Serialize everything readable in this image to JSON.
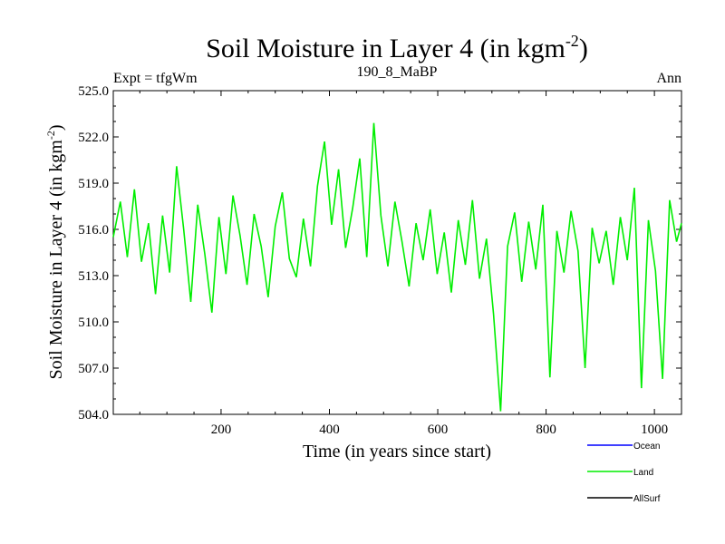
{
  "chart_data": {
    "type": "line",
    "title": "Soil Moisture in Layer 4 (in kgm",
    "title_superscript": "-2",
    "title_close": ")",
    "subtitle_left": "Expt = tfgWm",
    "subtitle_center": "190_8_MaBP",
    "subtitle_right": "Ann",
    "xlabel": "Time (in years since start)",
    "ylabel": "Soil Moisture in Layer 4 (in kgm",
    "ylabel_superscript": "-2",
    "ylabel_close": ")",
    "xlim": [
      1,
      1050
    ],
    "ylim": [
      504.0,
      525.0
    ],
    "xticks": [
      200,
      400,
      600,
      800,
      1000
    ],
    "yticks": [
      504.0,
      507.0,
      510.0,
      513.0,
      516.0,
      519.0,
      522.0,
      525.0
    ],
    "ytick_labels": [
      "504.0",
      "507.0",
      "510.0",
      "513.0",
      "516.0",
      "519.0",
      "522.0",
      "525.0"
    ],
    "xtick_labels": [
      "200",
      "400",
      "600",
      "800",
      "1000"
    ],
    "legend_placement": "bottom-right, below plot",
    "series": [
      {
        "name": "Ocean",
        "color": "#0000ff",
        "x": [],
        "y": []
      },
      {
        "name": "Land",
        "color": "#00ee00",
        "x": [
          1,
          14,
          27,
          40,
          53,
          66,
          79,
          92,
          105,
          118,
          131,
          144,
          157,
          170,
          183,
          196,
          209,
          222,
          235,
          248,
          261,
          274,
          287,
          300,
          313,
          326,
          339,
          352,
          365,
          378,
          391,
          404,
          417,
          430,
          443,
          456,
          469,
          482,
          495,
          508,
          521,
          534,
          547,
          560,
          573,
          586,
          599,
          612,
          625,
          638,
          651,
          664,
          677,
          690,
          703,
          716,
          729,
          742,
          755,
          768,
          781,
          794,
          807,
          820,
          833,
          846,
          859,
          872,
          885,
          898,
          911,
          924,
          937,
          950,
          963,
          976,
          989,
          1002,
          1015,
          1028,
          1041,
          1050
        ],
        "y": [
          515.5,
          517.8,
          514.2,
          518.6,
          513.9,
          516.4,
          511.8,
          516.9,
          513.2,
          520.1,
          516.0,
          511.3,
          517.6,
          514.4,
          510.6,
          516.8,
          513.1,
          518.2,
          515.6,
          512.4,
          517.0,
          514.9,
          511.6,
          516.2,
          518.4,
          514.1,
          512.9,
          516.7,
          513.6,
          518.8,
          521.7,
          516.3,
          519.9,
          514.8,
          517.4,
          520.6,
          514.2,
          522.9,
          516.9,
          513.6,
          517.8,
          515.2,
          512.3,
          516.4,
          514.0,
          517.3,
          513.1,
          515.8,
          511.9,
          516.6,
          513.7,
          517.9,
          512.8,
          515.4,
          510.5,
          504.2,
          514.9,
          517.1,
          512.6,
          516.5,
          513.4,
          517.6,
          506.4,
          515.9,
          513.2,
          517.2,
          514.6,
          507.0,
          516.1,
          513.8,
          515.9,
          512.4,
          516.8,
          514.0,
          518.7,
          505.7,
          516.6,
          513.3,
          506.3,
          517.9,
          515.2,
          516.4
        ]
      },
      {
        "name": "AllSurf",
        "color": "#000000",
        "x": [],
        "y": []
      }
    ]
  }
}
